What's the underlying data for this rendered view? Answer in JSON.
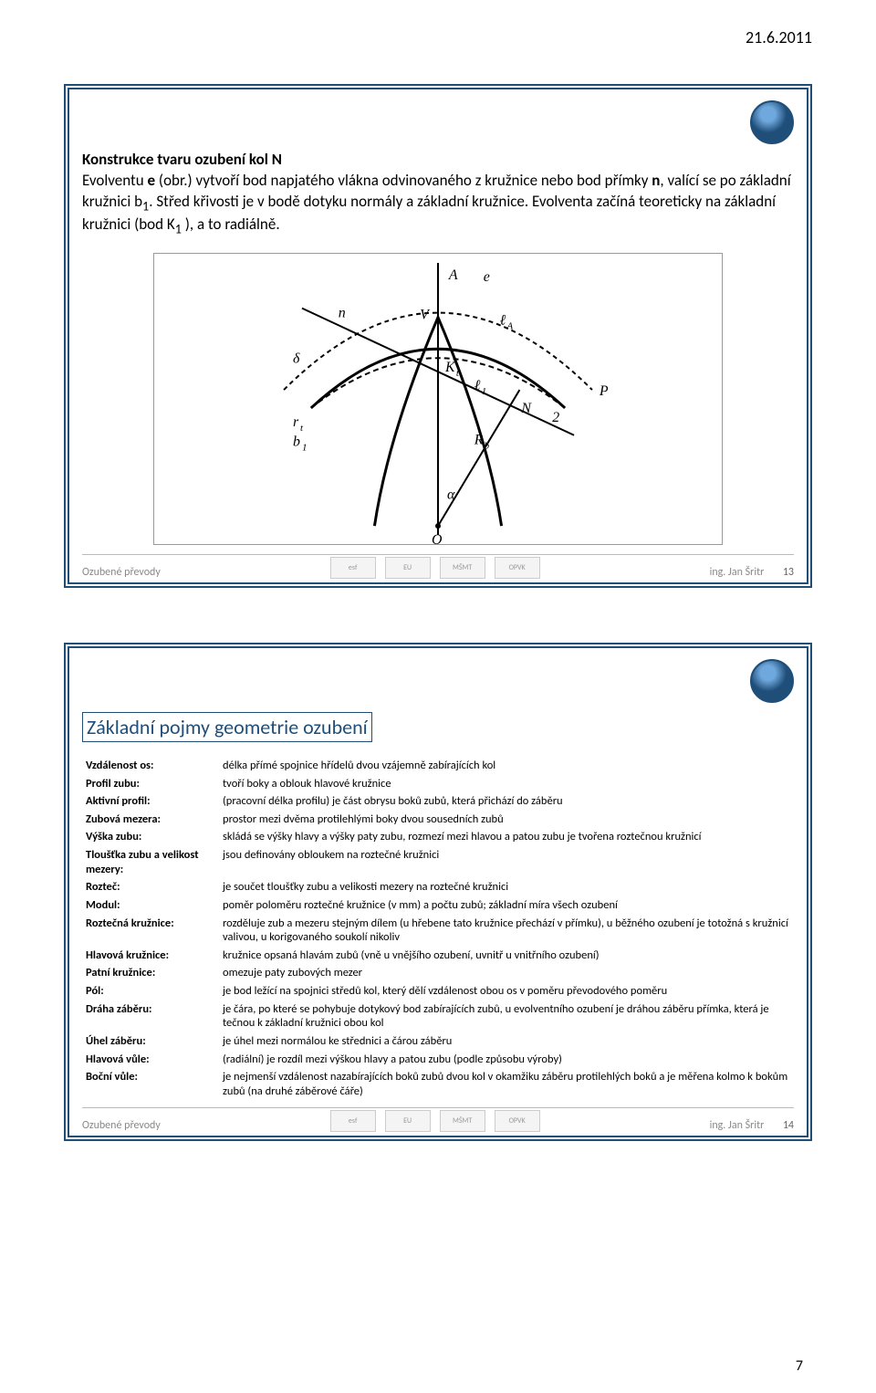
{
  "header": {
    "date": "21.6.2011"
  },
  "page_number": "7",
  "slide1": {
    "title_bold": "Konstrukce tvaru ozubení kol N",
    "line1_pre": "Evolventu ",
    "line1_bold": "e",
    "line1_post": " (obr.) vytvoří bod napjatého vlákna odvinovaného z kružnice nebo bod přímky ",
    "line2_pre": "n",
    "line2_post": ", valící se po základní kružnici b",
    "line2_sub": "1",
    "line2_end": ". Střed křivosti je v bodě dotyku normály a základní kružnice. Evolventa začíná teoreticky na základní kružnici (bod K",
    "line2_sub2": "1",
    "line2_end2": " ), a to radiálně.",
    "diagram": {
      "type": "technical-diagram",
      "labels": [
        "A",
        "e",
        "n",
        "V",
        "P",
        "K_t",
        "ℓ_A",
        "ℓ_1",
        "r_t",
        "b_1",
        "R_b",
        "N",
        "2",
        "α",
        "O"
      ],
      "line_color": "#000000",
      "bg_color": "#ffffff"
    },
    "footer_left": "Ozubené převody",
    "footer_right_author": "ing. Jan Šritr",
    "footer_right_num": "13"
  },
  "slide2": {
    "title": "Základní pojmy geometrie ozubení",
    "definitions": [
      {
        "term": "Vzdálenost os:",
        "def": "délka přímé spojnice hřídelů dvou vzájemně zabírajících kol"
      },
      {
        "term": "Profil zubu:",
        "def": "tvoří boky a oblouk hlavové kružnice"
      },
      {
        "term": "Aktivní profil:",
        "def": "(pracovní délka profilu) je část obrysu boků zubů, která přichází do záběru"
      },
      {
        "term": "Zubová mezera:",
        "def": "prostor mezi dvěma protilehlými boky dvou sousedních zubů"
      },
      {
        "term": "Výška zubu:",
        "def": "skládá se výšky hlavy a výšky paty zubu, rozmezí mezi hlavou a patou zubu je tvořena roztečnou kružnicí"
      },
      {
        "term": "Tloušťka zubu a velikost mezery:",
        "def": "jsou definovány obloukem na roztečné kružnici"
      },
      {
        "term": "Rozteč:",
        "def": "je součet tloušťky zubu a velikosti mezery na roztečné kružnici"
      },
      {
        "term": "Modul:",
        "def": "poměr poloměru roztečné kružnice (v mm) a počtu zubů; základní míra všech ozubení"
      },
      {
        "term": "Roztečná kružnice:",
        "def": "rozděluje zub a mezeru stejným dílem (u hřebene tato kružnice přechází v přímku), u běžného ozubení je totožná s kružnicí valivou, u korigovaného soukolí nikoliv"
      },
      {
        "term": "Hlavová kružnice:",
        "def": "kružnice opsaná hlavám zubů (vně u vnějšího ozubení, uvnitř u vnitřního ozubení)"
      },
      {
        "term": "Patní kružnice:",
        "def": "omezuje paty zubových mezer"
      },
      {
        "term": "Pól:",
        "def": "je bod ležící na spojnici středů kol, který dělí vzdálenost obou os v poměru převodového poměru"
      },
      {
        "term": "Dráha záběru:",
        "def": "je čára, po které se pohybuje dotykový bod zabírajících zubů, u evolventního ozubení je dráhou záběru přímka, která je tečnou k základní kružnici obou kol"
      },
      {
        "term": "Úhel záběru:",
        "def": "je úhel mezi normálou ke střednici a čárou záběru"
      },
      {
        "term": "Hlavová vůle:",
        "def": "(radiální) je rozdíl mezi výškou hlavy a patou zubu (podle způsobu výroby)"
      },
      {
        "term": "Boční vůle:",
        "def": "je nejmenší vzdálenost nazabírajících boků zubů dvou kol v okamžiku záběru protilehlých boků a je měřena kolmo k bokům zubů (na druhé záběrové čáře)"
      }
    ],
    "footer_left": "Ozubené převody",
    "footer_right_author": "ing. Jan Šritr",
    "footer_right_num": "14"
  }
}
